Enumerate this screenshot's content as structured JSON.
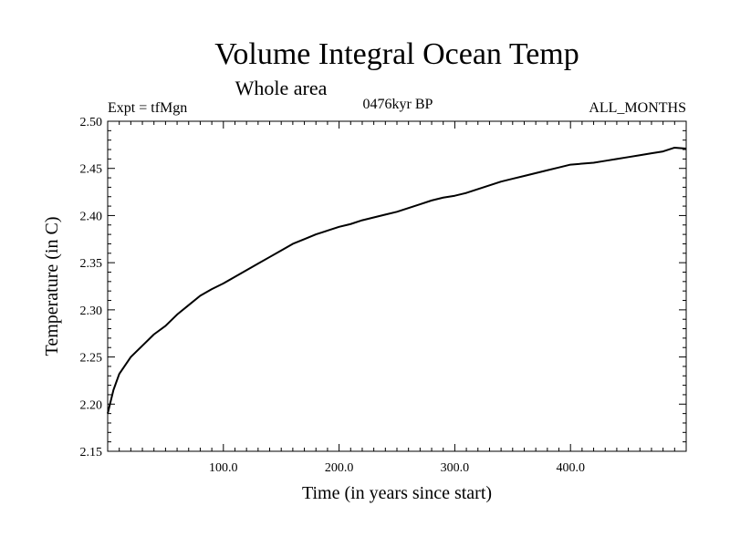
{
  "chart_data": {
    "type": "line",
    "title": "Volume Integral Ocean Temp",
    "subtitle": "Whole area",
    "experiment": "Expt = tfMgn",
    "period": "0476kyr BP",
    "months": "ALL_MONTHS",
    "xlabel": "Time (in years since start)",
    "ylabel": "Temperature (in C)",
    "xlim": [
      0,
      500
    ],
    "ylim": [
      2.15,
      2.5
    ],
    "x_ticks": [
      100,
      200,
      300,
      400
    ],
    "x_tick_labels": [
      "100.0",
      "200.0",
      "300.0",
      "400.0"
    ],
    "y_ticks": [
      2.15,
      2.2,
      2.25,
      2.3,
      2.35,
      2.4,
      2.45,
      2.5
    ],
    "y_tick_labels": [
      "2.15",
      "2.20",
      "2.25",
      "2.30",
      "2.35",
      "2.40",
      "2.45",
      "2.50"
    ],
    "grid": false,
    "series": [
      {
        "color": "#000000",
        "points": [
          [
            0,
            2.19
          ],
          [
            5,
            2.215
          ],
          [
            10,
            2.232
          ],
          [
            20,
            2.25
          ],
          [
            30,
            2.262
          ],
          [
            40,
            2.274
          ],
          [
            50,
            2.283
          ],
          [
            60,
            2.295
          ],
          [
            70,
            2.305
          ],
          [
            80,
            2.315
          ],
          [
            90,
            2.322
          ],
          [
            100,
            2.328
          ],
          [
            110,
            2.335
          ],
          [
            120,
            2.342
          ],
          [
            130,
            2.349
          ],
          [
            140,
            2.356
          ],
          [
            150,
            2.363
          ],
          [
            160,
            2.37
          ],
          [
            170,
            2.375
          ],
          [
            180,
            2.38
          ],
          [
            190,
            2.384
          ],
          [
            200,
            2.388
          ],
          [
            210,
            2.391
          ],
          [
            220,
            2.395
          ],
          [
            230,
            2.398
          ],
          [
            240,
            2.401
          ],
          [
            250,
            2.404
          ],
          [
            260,
            2.408
          ],
          [
            270,
            2.412
          ],
          [
            280,
            2.416
          ],
          [
            290,
            2.419
          ],
          [
            300,
            2.421
          ],
          [
            310,
            2.424
          ],
          [
            320,
            2.428
          ],
          [
            330,
            2.432
          ],
          [
            340,
            2.436
          ],
          [
            350,
            2.439
          ],
          [
            360,
            2.442
          ],
          [
            370,
            2.445
          ],
          [
            380,
            2.448
          ],
          [
            390,
            2.451
          ],
          [
            400,
            2.454
          ],
          [
            410,
            2.455
          ],
          [
            420,
            2.456
          ],
          [
            430,
            2.458
          ],
          [
            440,
            2.46
          ],
          [
            450,
            2.462
          ],
          [
            460,
            2.464
          ],
          [
            470,
            2.466
          ],
          [
            480,
            2.468
          ],
          [
            490,
            2.472
          ],
          [
            500,
            2.471
          ]
        ]
      }
    ]
  }
}
